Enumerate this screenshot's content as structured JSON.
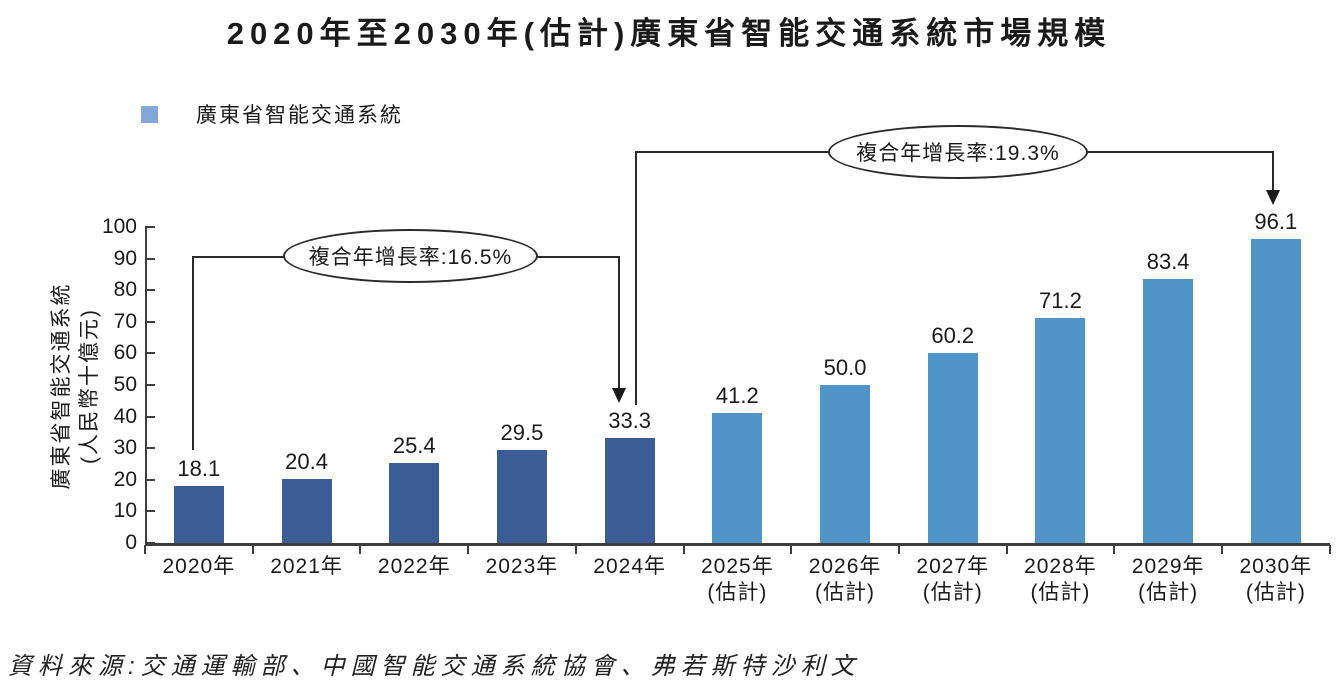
{
  "legend": {
    "label": "廣東省智能交通系統",
    "swatch_color": "#82a7d8"
  },
  "source": "資料來源:交通運輸部、中國智能交通系統協會、弗若斯特沙利文",
  "chart_data": {
    "type": "bar",
    "title": "2020年至2030年(估計)廣東省智能交通系統市場規模",
    "series_name": "廣東省智能交通系統",
    "categories": [
      "2020年",
      "2021年",
      "2022年",
      "2023年",
      "2024年",
      "2025年",
      "2026年",
      "2027年",
      "2028年",
      "2029年",
      "2030年"
    ],
    "category_sublabels": [
      "",
      "",
      "",
      "",
      "",
      "(估計)",
      "(估計)",
      "(估計)",
      "(估計)",
      "(估計)",
      "(估計)"
    ],
    "values": [
      18.1,
      20.4,
      25.4,
      29.5,
      33.3,
      41.2,
      50.0,
      60.2,
      71.2,
      83.4,
      96.1
    ],
    "ylabel_lines": [
      "廣東省智能交通系統",
      "(人民幣十億元)"
    ],
    "ylabel": "廣東省智能交通系統(人民幣十億元)",
    "xlabel": "",
    "ylim": [
      0,
      100
    ],
    "ytick_step": 10,
    "grid": "off",
    "legend_position": "top-left",
    "bar_colors": {
      "actual": "#3b5c94",
      "estimated": "#5094c8"
    },
    "estimated_from_index": 5,
    "annotations": [
      {
        "text": "複合年增長率:16.5%",
        "from": "2020年",
        "to": "2024年"
      },
      {
        "text": "複合年增長率:19.3%",
        "from": "2024年",
        "to": "2030年"
      }
    ]
  }
}
